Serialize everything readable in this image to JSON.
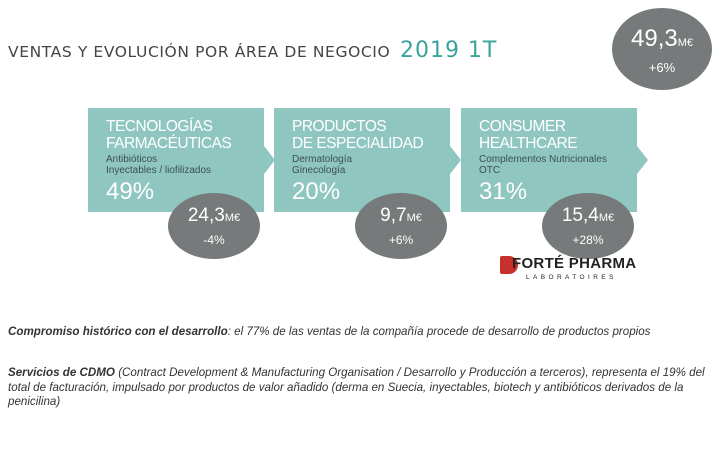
{
  "header": {
    "title": "VENTAS Y EVOLUCIÓN POR ÁREA DE NEGOCIO",
    "period": "2019 1T"
  },
  "total": {
    "amount": "49,3",
    "unit": "M€",
    "change": "+6%"
  },
  "segments": [
    {
      "name": "TECNOLOGÍAS\nFARMACÉUTICAS",
      "sub": "Antibióticos\nInyectables / liofilizados",
      "share": "49%",
      "amount": "24,3",
      "unit": "M€",
      "change": "-4%"
    },
    {
      "name": "PRODUCTOS\nDE ESPECIALIDAD",
      "sub": "Dermatología\nGinecología",
      "share": "20%",
      "amount": "9,7",
      "unit": "M€",
      "change": "+6%"
    },
    {
      "name": "CONSUMER\nHEALTHCARE",
      "sub": "Complementos Nutricionales\nOTC",
      "share": "31%",
      "amount": "15,4",
      "unit": "M€",
      "change": "+28%"
    }
  ],
  "logo": {
    "brand": "FORTÉ PHARMA",
    "tagline": "LABORATOIRES"
  },
  "notes": [
    {
      "lead": "Compromiso histórico  con el desarrollo",
      "text": ": el 77% de las ventas de la compañía procede de desarrollo de productos propios"
    },
    {
      "lead": "Servicios de CDMO",
      "text": " (Contract Development & Manufacturing Organisation / Desarrollo y Producción a terceros), representa el 19% del total de facturación,  impulsado por productos de valor añadido (derma en Suecia, inyectables, biotech y antibióticos derivados de la penicilina)"
    }
  ],
  "colors": {
    "teal_card": "#8fc6c0",
    "bubble_gray": "#777a7b",
    "accent_teal": "#3aa39b",
    "logo_red": "#c8312b"
  }
}
